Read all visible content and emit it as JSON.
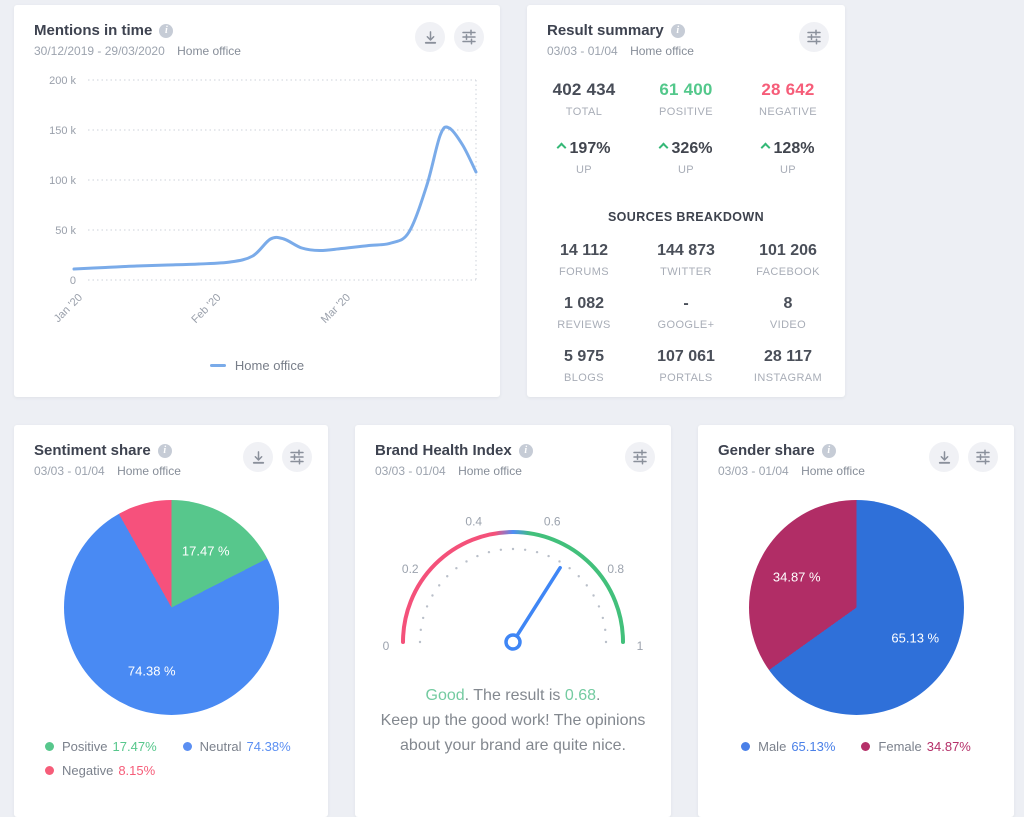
{
  "icons": {
    "info": "i"
  },
  "cards": {
    "mentions": {
      "title": "Mentions in time",
      "date_range": "30/12/2019 - 29/03/2020",
      "project": "Home office",
      "legend_label": "Home office"
    },
    "summary": {
      "title": "Result summary",
      "date_range": "03/03 - 01/04",
      "project": "Home office",
      "stats": [
        {
          "value": "402 434",
          "label": "TOTAL",
          "color": "#474c57"
        },
        {
          "value": "61 400",
          "label": "POSITIVE",
          "color": "#53c88b"
        },
        {
          "value": "28 642",
          "label": "NEGATIVE",
          "color": "#f65d79"
        }
      ],
      "changes": [
        {
          "value": "197%",
          "label": "UP",
          "direction": "up"
        },
        {
          "value": "326%",
          "label": "UP",
          "direction": "up"
        },
        {
          "value": "128%",
          "label": "UP",
          "direction": "up"
        }
      ],
      "sources_title": "SOURCES BREAKDOWN",
      "sources": [
        {
          "value": "14 112",
          "label": "FORUMS"
        },
        {
          "value": "144 873",
          "label": "TWITTER"
        },
        {
          "value": "101 206",
          "label": "FACEBOOK"
        },
        {
          "value": "1 082",
          "label": "REVIEWS"
        },
        {
          "value": "-",
          "label": "GOOGLE+"
        },
        {
          "value": "8",
          "label": "VIDEO"
        },
        {
          "value": "5 975",
          "label": "BLOGS"
        },
        {
          "value": "107 061",
          "label": "PORTALS"
        },
        {
          "value": "28 117",
          "label": "INSTAGRAM"
        }
      ]
    },
    "sentiment": {
      "title": "Sentiment share",
      "date_range": "03/03 - 01/04",
      "project": "Home office"
    },
    "bhi": {
      "title": "Brand Health Index",
      "date_range": "03/03 - 01/04",
      "project": "Home office",
      "rating": "Good",
      "result_mid": ". The result is ",
      "result_value": "0.68",
      "result_end": ".",
      "message": "Keep up the good work! The opinions about your brand are quite nice.",
      "accent_color": "#74cba1"
    },
    "gender": {
      "title": "Gender share",
      "date_range": "03/03 - 01/04",
      "project": "Home office"
    }
  },
  "chart_data": [
    {
      "id": "mentions",
      "type": "line",
      "title": "Mentions in time",
      "x_range": [
        "2019-12-30",
        "2020-03-29"
      ],
      "ylim": [
        0,
        200
      ],
      "y_unit": "thousands of mentions",
      "grid": "dotted horizontal, dotted right border",
      "legend_position": "bottom",
      "y_ticks": [
        {
          "v": 0,
          "label": "0"
        },
        {
          "v": 50,
          "label": "50 k"
        },
        {
          "v": 100,
          "label": "100 k"
        },
        {
          "v": 150,
          "label": "150 k"
        },
        {
          "v": 200,
          "label": "200 k"
        }
      ],
      "x_ticks": [
        {
          "date": "2020-01-01",
          "label": "Jan '20"
        },
        {
          "date": "2020-02-01",
          "label": "Feb '20"
        },
        {
          "date": "2020-03-01",
          "label": "Mar '20"
        }
      ],
      "series": [
        {
          "name": "Home office",
          "color": "#7aabe9",
          "points": [
            [
              "2019-12-30",
              11
            ],
            [
              "2020-01-06",
              12.5
            ],
            [
              "2020-01-13",
              14
            ],
            [
              "2020-01-20",
              15
            ],
            [
              "2020-01-27",
              16
            ],
            [
              "2020-02-03",
              18
            ],
            [
              "2020-02-08",
              24
            ],
            [
              "2020-02-12",
              41
            ],
            [
              "2020-02-15",
              41
            ],
            [
              "2020-02-19",
              32
            ],
            [
              "2020-02-23",
              29.5
            ],
            [
              "2020-02-28",
              31.5
            ],
            [
              "2020-03-05",
              34.5
            ],
            [
              "2020-03-10",
              37
            ],
            [
              "2020-03-14",
              48
            ],
            [
              "2020-03-18",
              95
            ],
            [
              "2020-03-21",
              145
            ],
            [
              "2020-03-23",
              152
            ],
            [
              "2020-03-26",
              135
            ],
            [
              "2020-03-29",
              108
            ]
          ]
        }
      ]
    },
    {
      "id": "sentiment",
      "type": "pie",
      "title": "Sentiment share",
      "start_angle": "top, clockwise",
      "slices": [
        {
          "name": "Positive",
          "pct": 17.47,
          "color": "#57c78c",
          "legend_color": "#57c78c"
        },
        {
          "name": "Neutral",
          "pct": 74.38,
          "color": "#498af3",
          "legend_color": "#5b8ff2"
        },
        {
          "name": "Negative",
          "pct": 8.15,
          "color": "#f6517c",
          "legend_color": "#f65d79"
        }
      ]
    },
    {
      "id": "bhi",
      "type": "gauge",
      "title": "Brand Health Index",
      "value": 0.68,
      "range": [
        0,
        1
      ],
      "tick_labels": [
        {
          "value": 0,
          "label": "0"
        },
        {
          "value": 0.2,
          "label": "0.2"
        },
        {
          "value": 0.4,
          "label": "0.4"
        },
        {
          "value": 0.6,
          "label": "0.6"
        },
        {
          "value": 0.8,
          "label": "0.8"
        },
        {
          "value": 1,
          "label": "1"
        }
      ],
      "arc_colors": {
        "low": "#f4517a",
        "mid": "#4f8df5",
        "high": "#42c07b"
      },
      "needle_color": "#3f86f5",
      "tick_dot_color": "#b9bfc9"
    },
    {
      "id": "gender",
      "type": "pie",
      "title": "Gender share",
      "start_angle": "top, clockwise",
      "slices": [
        {
          "name": "Male",
          "pct": 65.13,
          "color": "#2f70d9",
          "legend_color": "#4a80e8"
        },
        {
          "name": "Female",
          "pct": 34.87,
          "color": "#b12d66",
          "legend_color": "#b53069"
        }
      ]
    }
  ]
}
